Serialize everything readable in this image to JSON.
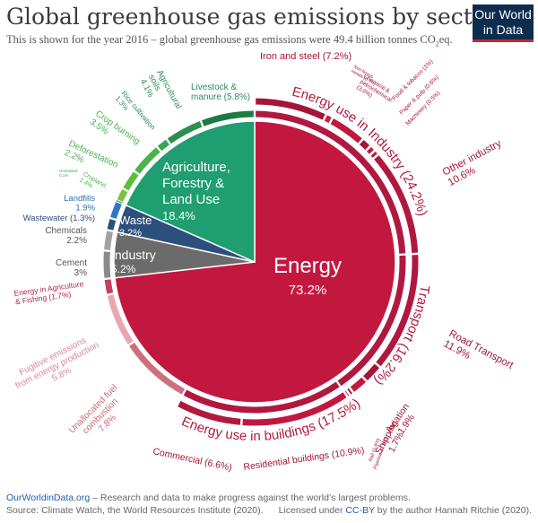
{
  "title": "Global greenhouse gas emissions by sector",
  "subtitle_pre": "This is shown for the year 2016 – global greenhouse gas emissions were 49.4 billion tonnes CO",
  "subtitle_sub": "2",
  "subtitle_post": "eq.",
  "logo": {
    "line1": "Our World",
    "line2": "in Data"
  },
  "footer": {
    "site": "OurWorldinData.org",
    "tagline": " – Research and data to make progress against the world’s largest problems.",
    "source": "Source: Climate Watch, the World Resources Institute (2020).",
    "license_pre": "Licensed under ",
    "license_link": "CC-BY",
    "license_post": " by the author Hannah Ritchie (2020)."
  },
  "colors": {
    "energy": "#c2183f",
    "agriculture": "#1e9e71",
    "waste": "#2c4f7c",
    "industry": "#6b6b6b"
  },
  "chart_data": {
    "type": "pie",
    "year": 2016,
    "total": "49.4 billion tonnes CO2eq",
    "slices": [
      {
        "name": "Energy",
        "label": "Energy",
        "value": 73.2,
        "value_label": "73.2%",
        "color": "#c2183f"
      },
      {
        "name": "Industry",
        "label": "Industry",
        "value": 5.2,
        "value_label": "5.2%",
        "color": "#6b6b6b"
      },
      {
        "name": "Waste",
        "label": "Waste",
        "value": 3.2,
        "value_label": "3.2%",
        "color": "#2c4f7c"
      },
      {
        "name": "Agriculture, Forestry & Land Use",
        "label_lines": [
          "Agriculture,",
          "Forestry &",
          "Land Use"
        ],
        "value": 18.4,
        "value_label": "18.4%",
        "color": "#1e9e71"
      }
    ],
    "subsectors": [
      {
        "group": "Energy",
        "name": "Energy use in Industry",
        "value": 24.2,
        "label": "Energy use in Industry (24.2%)"
      },
      {
        "group": "Energy",
        "name": "Transport",
        "value": 16.2,
        "label": "Transport (16.2%)"
      },
      {
        "group": "Energy",
        "name": "Energy use in buildings",
        "value": 17.5,
        "label": "Energy use in buildings (17.5%)"
      },
      {
        "group": "Energy",
        "name": "Unallocated fuel combustion",
        "value": 7.8
      },
      {
        "group": "Energy",
        "name": "Fugitive emissions from energy production",
        "value": 5.8
      },
      {
        "group": "Energy",
        "name": "Energy in Agriculture & Fishing",
        "value": 1.7
      },
      {
        "group": "Industry",
        "name": "Cement",
        "value": 3
      },
      {
        "group": "Industry",
        "name": "Chemicals",
        "value": 2.2
      },
      {
        "group": "Waste",
        "name": "Wastewater",
        "value": 1.3
      },
      {
        "group": "Waste",
        "name": "Landfills",
        "value": 1.9
      },
      {
        "group": "Agriculture",
        "name": "Grassland",
        "value": 0.1
      },
      {
        "group": "Agriculture",
        "name": "Cropland",
        "value": 1.4
      },
      {
        "group": "Agriculture",
        "name": "Deforestation",
        "value": 2.2
      },
      {
        "group": "Agriculture",
        "name": "Crop burning",
        "value": 3.5
      },
      {
        "group": "Agriculture",
        "name": "Rice cultivation",
        "value": 1.3
      },
      {
        "group": "Agriculture",
        "name": "Agricultural soils",
        "value": 4.1
      },
      {
        "group": "Agriculture",
        "name": "Livestock & manure",
        "value": 5.8
      }
    ],
    "details": [
      {
        "group": "Energy use in Industry",
        "name": "Iron and steel",
        "value": 7.2
      },
      {
        "group": "Energy use in Industry",
        "name": "Non-ferous metals",
        "value": 0.7
      },
      {
        "group": "Energy use in Industry",
        "name": "Chemical & petrochemical",
        "value": 3.6
      },
      {
        "group": "Energy use in Industry",
        "name": "Food & tobacco",
        "value": 1
      },
      {
        "group": "Energy use in Industry",
        "name": "Paper & pulp",
        "value": 0.6
      },
      {
        "group": "Energy use in Industry",
        "name": "Machinery",
        "value": 0.5
      },
      {
        "group": "Energy use in Industry",
        "name": "Other industry",
        "value": 10.6
      },
      {
        "group": "Transport",
        "name": "Road Transport",
        "value": 11.9
      },
      {
        "group": "Transport",
        "name": "Aviation",
        "value": 1.9
      },
      {
        "group": "Transport",
        "name": "Shipping",
        "value": 1.7
      },
      {
        "group": "Transport",
        "name": "Rail",
        "value": 0.4
      },
      {
        "group": "Transport",
        "name": "Pipeline",
        "value": 0.3
      },
      {
        "group": "Energy use in buildings",
        "name": "Residential buildings",
        "value": 10.9
      },
      {
        "group": "Energy use in buildings",
        "name": "Commercial",
        "value": 6.6
      }
    ],
    "labels": [
      {
        "key": "iron",
        "lines": [
          "Iron and steel (7.2%)"
        ],
        "color": "#a31637",
        "size": 11
      },
      {
        "key": "nonfer",
        "lines": [
          "Non-ferous",
          "metals (0.7%)"
        ],
        "color": "#a31637",
        "size": 5
      },
      {
        "key": "chem",
        "lines": [
          "Chemical &",
          "petrochemical",
          "(3.6%)"
        ],
        "color": "#a31637",
        "size": 6.5
      },
      {
        "key": "food",
        "lines": [
          "Food & tobacco (1%)"
        ],
        "color": "#a31637",
        "size": 6.5
      },
      {
        "key": "paper",
        "lines": [
          "Paper & pulp (0.6%)"
        ],
        "color": "#a31637",
        "size": 6.5
      },
      {
        "key": "mach",
        "lines": [
          "Machinery (0.5%)"
        ],
        "color": "#a31637",
        "size": 6.5
      },
      {
        "key": "other",
        "lines": [
          "Other industry",
          "10.6%"
        ],
        "color": "#a31637",
        "size": 11.5
      },
      {
        "key": "road",
        "lines": [
          "Road Transport",
          "11.9%"
        ],
        "color": "#a31637",
        "size": 11.5
      },
      {
        "key": "aviation",
        "lines": [
          "Aviation",
          "1.9%"
        ],
        "color": "#a31637",
        "size": 10.5
      },
      {
        "key": "shipping",
        "lines": [
          "Shipping",
          "1.7%"
        ],
        "color": "#a31637",
        "size": 10.5
      },
      {
        "key": "rail",
        "lines": [
          "Rail (0.4%)"
        ],
        "color": "#a31637",
        "size": 5.5
      },
      {
        "key": "pipeline",
        "lines": [
          "Pipeline (0.3%)"
        ],
        "color": "#a31637",
        "size": 5.5
      },
      {
        "key": "residential",
        "lines": [
          "Residential buildings (10.9%)"
        ],
        "color": "#a31637",
        "size": 10.5
      },
      {
        "key": "commercial",
        "lines": [
          "Commercial (6.6%)"
        ],
        "color": "#a31637",
        "size": 10.5
      },
      {
        "key": "unalloc",
        "lines": [
          "Unallocated fuel",
          "combustion",
          "7.8%"
        ],
        "color": "#c96a78",
        "size": 10
      },
      {
        "key": "fugitive",
        "lines": [
          "Fugitive emissions",
          "from energy production",
          "5.8%"
        ],
        "color": "#d98a95",
        "size": 10
      },
      {
        "key": "energyag",
        "lines": [
          "Energy in Agriculture",
          "& Fishing (1.7%)"
        ],
        "color": "#b5254a",
        "size": 8.5
      },
      {
        "key": "cement",
        "lines": [
          "Cement",
          "3%"
        ],
        "color": "#555555",
        "size": 10
      },
      {
        "key": "chemicals",
        "lines": [
          "Chemicals",
          "2.2%"
        ],
        "color": "#555555",
        "size": 10
      },
      {
        "key": "wastewater",
        "lines": [
          "Wastewater (1.3%)"
        ],
        "color": "#2c4f7c",
        "size": 9.5
      },
      {
        "key": "landfills",
        "lines": [
          "Landfills",
          "1.9%"
        ],
        "color": "#2c6fb5",
        "size": 9.5
      },
      {
        "key": "grassland",
        "lines": [
          "Grassland",
          "0.1%"
        ],
        "color": "#3aa35b",
        "size": 4.5
      },
      {
        "key": "cropland",
        "lines": [
          "Cropland",
          "1.4%"
        ],
        "color": "#4bb34d",
        "size": 7
      },
      {
        "key": "deforest",
        "lines": [
          "Deforestation",
          "2.2%"
        ],
        "color": "#4bb34d",
        "size": 10
      },
      {
        "key": "cropburn",
        "lines": [
          "Crop burning",
          "3.5%"
        ],
        "color": "#4bb34d",
        "size": 10
      },
      {
        "key": "rice",
        "lines": [
          "Rice cultivation",
          "1.3%"
        ],
        "color": "#2e8b57",
        "size": 8
      },
      {
        "key": "agsoils",
        "lines": [
          "Agricultural",
          "soils",
          "4.1%"
        ],
        "color": "#2e8b57",
        "size": 9.5
      },
      {
        "key": "livestock",
        "lines": [
          "Livestock &",
          "manure (5.8%)"
        ],
        "color": "#2e8b57",
        "size": 10
      }
    ],
    "arc_labels": [
      {
        "key": "industry_arc",
        "text": "Energy use in Industry (24.2%)",
        "color": "#b01c41",
        "size": 15
      },
      {
        "key": "transport_arc",
        "text": "Transport (16.2%)",
        "color": "#b01c41",
        "size": 15
      },
      {
        "key": "buildings_arc",
        "text": "Energy use in buildings (17.5%)",
        "color": "#b01c41",
        "size": 15
      }
    ]
  }
}
